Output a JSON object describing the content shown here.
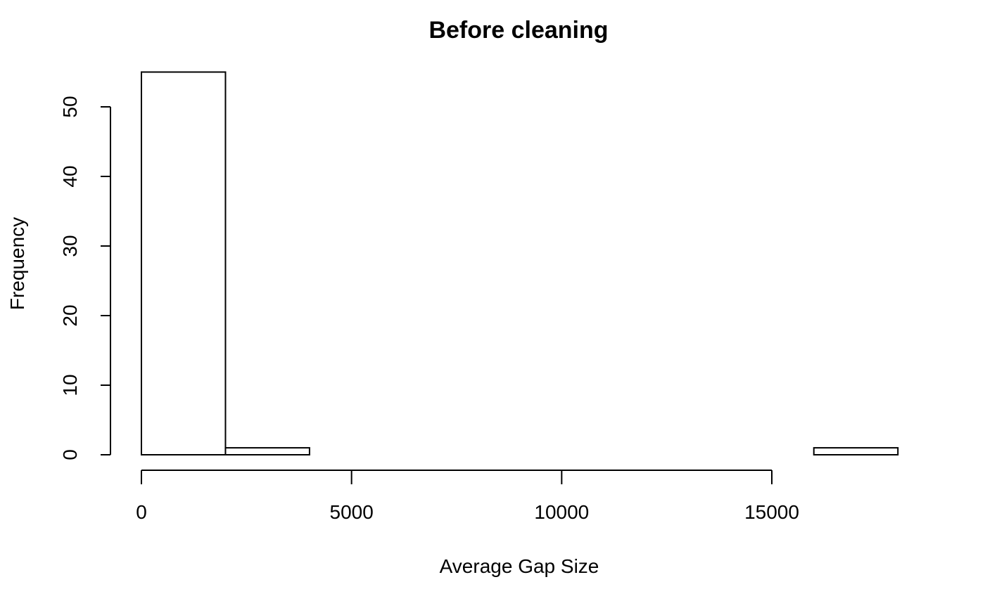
{
  "chart_data": {
    "type": "bar",
    "title": "Before cleaning",
    "xlabel": "Average Gap Size",
    "ylabel": "Frequency",
    "bins": [
      {
        "start": 0,
        "end": 2000,
        "count": 55
      },
      {
        "start": 2000,
        "end": 4000,
        "count": 1
      },
      {
        "start": 4000,
        "end": 6000,
        "count": 0
      },
      {
        "start": 6000,
        "end": 8000,
        "count": 0
      },
      {
        "start": 8000,
        "end": 10000,
        "count": 0
      },
      {
        "start": 10000,
        "end": 12000,
        "count": 0
      },
      {
        "start": 12000,
        "end": 14000,
        "count": 0
      },
      {
        "start": 14000,
        "end": 16000,
        "count": 0
      },
      {
        "start": 16000,
        "end": 18000,
        "count": 1
      }
    ],
    "xticks": [
      0,
      5000,
      10000,
      15000
    ],
    "xtick_labels": [
      "0",
      "5000",
      "10000",
      "15000"
    ],
    "yticks": [
      0,
      10,
      20,
      30,
      40,
      50
    ],
    "ytick_labels": [
      "0",
      "10",
      "20",
      "30",
      "40",
      "50"
    ],
    "grid": false,
    "legend": "none"
  }
}
